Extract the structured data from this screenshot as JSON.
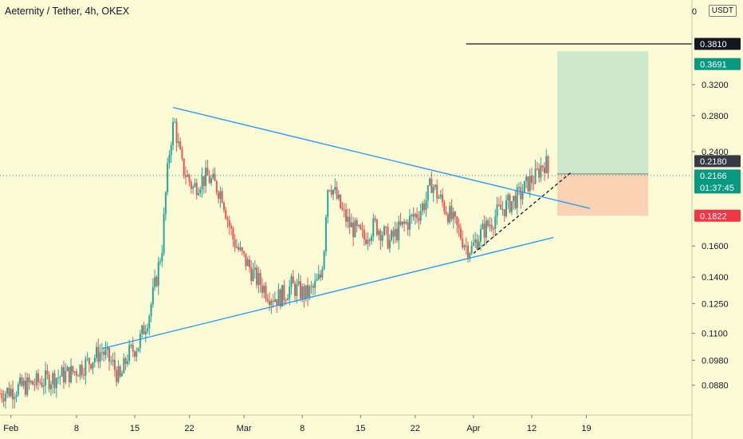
{
  "header": {
    "title": "Aeternity / Tether, 4h, OKEX",
    "currency": "USDT",
    "currency_check": "0"
  },
  "colors": {
    "background": "#fbfbd6",
    "up": "#26a69a",
    "down": "#ef5350",
    "trendline": "#2196f3",
    "target_zone": "#c8e6c9",
    "stop_zone": "#f8cbad",
    "current_price": "#089981",
    "stop_label": "#f23645",
    "resistance_label": "#131722"
  },
  "chart_data": {
    "type": "candlestick",
    "symbol": "Aeternity / Tether",
    "interval": "4h",
    "exchange": "OKEX",
    "y_scale": "log",
    "y_ticks": [
      "0.3200",
      "0.2800",
      "0.2400",
      "0.1600",
      "0.1400",
      "0.1250",
      "0.1100",
      "0.0980",
      "0.0880"
    ],
    "x_ticks": [
      "Feb",
      "8",
      "15",
      "22",
      "Mar",
      "8",
      "15",
      "22",
      "Apr",
      "12",
      "19"
    ],
    "price_labels": [
      {
        "text": "0.3810",
        "value": 0.381,
        "style": "resistance"
      },
      {
        "text": "0.3691",
        "value": 0.3691,
        "style": "target"
      },
      {
        "text": "0.2180",
        "value": 0.218,
        "style": "entry"
      },
      {
        "text": "0.2166",
        "value": 0.2166,
        "style": "current",
        "countdown": "01:37:45"
      },
      {
        "text": "0.1822",
        "value": 0.1822,
        "style": "stop"
      }
    ],
    "close_path": [
      [
        0,
        0.085
      ],
      [
        5,
        0.087
      ],
      [
        10,
        0.089
      ],
      [
        15,
        0.091
      ],
      [
        20,
        0.093
      ],
      [
        24,
        0.097
      ],
      [
        28,
        0.102
      ],
      [
        31,
        0.096
      ],
      [
        33,
        0.09
      ],
      [
        35,
        0.1
      ],
      [
        38,
        0.105
      ],
      [
        41,
        0.12
      ],
      [
        43,
        0.14
      ],
      [
        44.5,
        0.16
      ],
      [
        45.5,
        0.2
      ],
      [
        46.5,
        0.24
      ],
      [
        47.3,
        0.265
      ],
      [
        48,
        0.27
      ],
      [
        49,
        0.245
      ],
      [
        50,
        0.225
      ],
      [
        51.5,
        0.215
      ],
      [
        53,
        0.205
      ],
      [
        55,
        0.212
      ],
      [
        57,
        0.215
      ],
      [
        59,
        0.208
      ],
      [
        61,
        0.2
      ],
      [
        62.5,
        0.18
      ],
      [
        64,
        0.165
      ],
      [
        66,
        0.155
      ],
      [
        68,
        0.148
      ],
      [
        70,
        0.14
      ],
      [
        72,
        0.135
      ],
      [
        74,
        0.13
      ],
      [
        76,
        0.128
      ],
      [
        78,
        0.13
      ],
      [
        80,
        0.135
      ],
      [
        82,
        0.132
      ],
      [
        84,
        0.13
      ],
      [
        86,
        0.133
      ],
      [
        88,
        0.14
      ],
      [
        89,
        0.16
      ],
      [
        89.8,
        0.205
      ],
      [
        90.6,
        0.21
      ],
      [
        92,
        0.2
      ],
      [
        94,
        0.185
      ],
      [
        96,
        0.175
      ],
      [
        98,
        0.17
      ],
      [
        100,
        0.165
      ],
      [
        101,
        0.17
      ],
      [
        103,
        0.175
      ],
      [
        105,
        0.17
      ],
      [
        107,
        0.163
      ],
      [
        109,
        0.17
      ],
      [
        111,
        0.175
      ],
      [
        113,
        0.18
      ],
      [
        115,
        0.185
      ],
      [
        117,
        0.195
      ],
      [
        118.5,
        0.21
      ],
      [
        120,
        0.2
      ],
      [
        122,
        0.19
      ],
      [
        124,
        0.18
      ],
      [
        126,
        0.17
      ],
      [
        128,
        0.16
      ],
      [
        129.5,
        0.158
      ],
      [
        131,
        0.165
      ],
      [
        133,
        0.172
      ],
      [
        135,
        0.178
      ],
      [
        137,
        0.186
      ],
      [
        139,
        0.19
      ],
      [
        141,
        0.195
      ],
      [
        143,
        0.2
      ],
      [
        145,
        0.21
      ],
      [
        147,
        0.215
      ],
      [
        148.5,
        0.225
      ],
      [
        149.8,
        0.23
      ],
      [
        150.7,
        0.2166
      ]
    ],
    "trendlines": [
      {
        "name": "upper",
        "points": [
          [
            47.5,
            0.29
          ],
          [
            162,
            0.188
          ]
        ]
      },
      {
        "name": "lower",
        "points": [
          [
            28,
            0.103
          ],
          [
            152,
            0.166
          ]
        ]
      },
      {
        "name": "support",
        "style": "dashed",
        "points": [
          [
            130,
            0.155
          ],
          [
            157,
            0.22
          ]
        ]
      }
    ],
    "resistance_line": {
      "value": 0.381,
      "x_start": 128
    },
    "position": {
      "entry": 0.218,
      "target": 0.3691,
      "stop": 0.1822,
      "x_start": 153,
      "x_end": 178
    }
  }
}
